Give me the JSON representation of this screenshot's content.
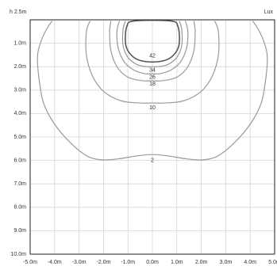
{
  "chart_data": {
    "type": "line",
    "title": "",
    "xlabel": "",
    "ylabel": "h 2.5m",
    "unit_label": "Lux",
    "x_ticks": [
      "-5.0m",
      "-4.0m",
      "-3.0m",
      "-2.0m",
      "-1.0m",
      "0.0m",
      "1.0m",
      "2.0m",
      "3.0m",
      "4.0m",
      "5.0m"
    ],
    "y_ticks": [
      "1.0m",
      "2.0m",
      "3.0m",
      "4.0m",
      "5.0m",
      "6.0m",
      "7.0m",
      "8.0m",
      "9.0m",
      "10.0m"
    ],
    "xlim": [
      -5,
      5
    ],
    "ylim": [
      0,
      10
    ],
    "grid": true,
    "colors": {
      "contour_light": "#999999",
      "contour_dark": "#555555",
      "grid": "#d6d6d6",
      "frame": "#222222"
    },
    "series": [
      {
        "name": "2",
        "label_at": [
          0,
          6.0
        ],
        "points": [
          [
            -4.1,
            0.05
          ],
          [
            -4.3,
            0.35
          ],
          [
            -4.55,
            0.9
          ],
          [
            -4.7,
            1.6
          ],
          [
            -4.6,
            2.8
          ],
          [
            -4.4,
            3.7
          ],
          [
            -3.9,
            4.6
          ],
          [
            -3.2,
            5.4
          ],
          [
            -2.6,
            5.85
          ],
          [
            -2.0,
            5.98
          ],
          [
            -1.3,
            5.92
          ],
          [
            -0.6,
            5.8
          ],
          [
            0,
            5.75
          ],
          [
            0.6,
            5.8
          ],
          [
            1.3,
            5.92
          ],
          [
            2.0,
            5.98
          ],
          [
            2.6,
            5.85
          ],
          [
            3.2,
            5.4
          ],
          [
            3.9,
            4.6
          ],
          [
            4.4,
            3.7
          ],
          [
            4.6,
            2.8
          ],
          [
            4.7,
            1.6
          ],
          [
            4.55,
            0.9
          ],
          [
            4.3,
            0.35
          ],
          [
            4.1,
            0.05
          ]
        ]
      },
      {
        "name": "10",
        "label_at": [
          0,
          3.75
        ],
        "points": [
          [
            -2.55,
            0.05
          ],
          [
            -2.7,
            0.5
          ],
          [
            -2.7,
            1.5
          ],
          [
            -2.45,
            2.4
          ],
          [
            -2.0,
            3.05
          ],
          [
            -1.3,
            3.45
          ],
          [
            -0.5,
            3.55
          ],
          [
            0,
            3.55
          ],
          [
            0.5,
            3.55
          ],
          [
            1.3,
            3.45
          ],
          [
            2.0,
            3.05
          ],
          [
            2.45,
            2.4
          ],
          [
            2.7,
            1.5
          ],
          [
            2.7,
            0.5
          ],
          [
            2.55,
            0.05
          ]
        ]
      },
      {
        "name": "18",
        "label_at": [
          0,
          2.75
        ],
        "points": [
          [
            -1.7,
            0.05
          ],
          [
            -1.75,
            0.5
          ],
          [
            -1.7,
            1.3
          ],
          [
            -1.45,
            2.0
          ],
          [
            -1.0,
            2.45
          ],
          [
            -0.4,
            2.6
          ],
          [
            0,
            2.6
          ],
          [
            0.4,
            2.6
          ],
          [
            1.0,
            2.45
          ],
          [
            1.45,
            2.0
          ],
          [
            1.7,
            1.3
          ],
          [
            1.75,
            0.5
          ],
          [
            1.7,
            0.05
          ]
        ]
      },
      {
        "name": "26",
        "label_at": [
          0,
          2.45
        ],
        "points": [
          [
            -1.35,
            0.05
          ],
          [
            -1.45,
            0.5
          ],
          [
            -1.4,
            1.2
          ],
          [
            -1.15,
            1.8
          ],
          [
            -0.75,
            2.15
          ],
          [
            -0.3,
            2.3
          ],
          [
            0,
            2.3
          ],
          [
            0.3,
            2.3
          ],
          [
            0.75,
            2.15
          ],
          [
            1.15,
            1.8
          ],
          [
            1.4,
            1.2
          ],
          [
            1.45,
            0.5
          ],
          [
            1.35,
            0.05
          ]
        ]
      },
      {
        "name": "34",
        "label_at": [
          0,
          2.15
        ],
        "points": [
          [
            -1.1,
            0.05
          ],
          [
            -1.2,
            0.4
          ],
          [
            -1.2,
            1.1
          ],
          [
            -1.0,
            1.6
          ],
          [
            -0.65,
            1.9
          ],
          [
            -0.25,
            2.0
          ],
          [
            0,
            2.0
          ],
          [
            0.25,
            2.0
          ],
          [
            0.65,
            1.9
          ],
          [
            1.0,
            1.6
          ],
          [
            1.2,
            1.1
          ],
          [
            1.2,
            0.4
          ],
          [
            1.1,
            0.05
          ]
        ]
      },
      {
        "name": "42",
        "label_at": [
          0,
          1.55
        ],
        "closed": true,
        "points": [
          [
            -0.75,
            0.05
          ],
          [
            0.75,
            0.05
          ],
          [
            1.05,
            0.3
          ],
          [
            1.1,
            1.0
          ],
          [
            0.95,
            1.4
          ],
          [
            0.6,
            1.7
          ],
          [
            0,
            1.8
          ],
          [
            -0.6,
            1.7
          ],
          [
            -0.95,
            1.4
          ],
          [
            -1.1,
            1.0
          ],
          [
            -1.05,
            0.3
          ]
        ]
      }
    ]
  }
}
